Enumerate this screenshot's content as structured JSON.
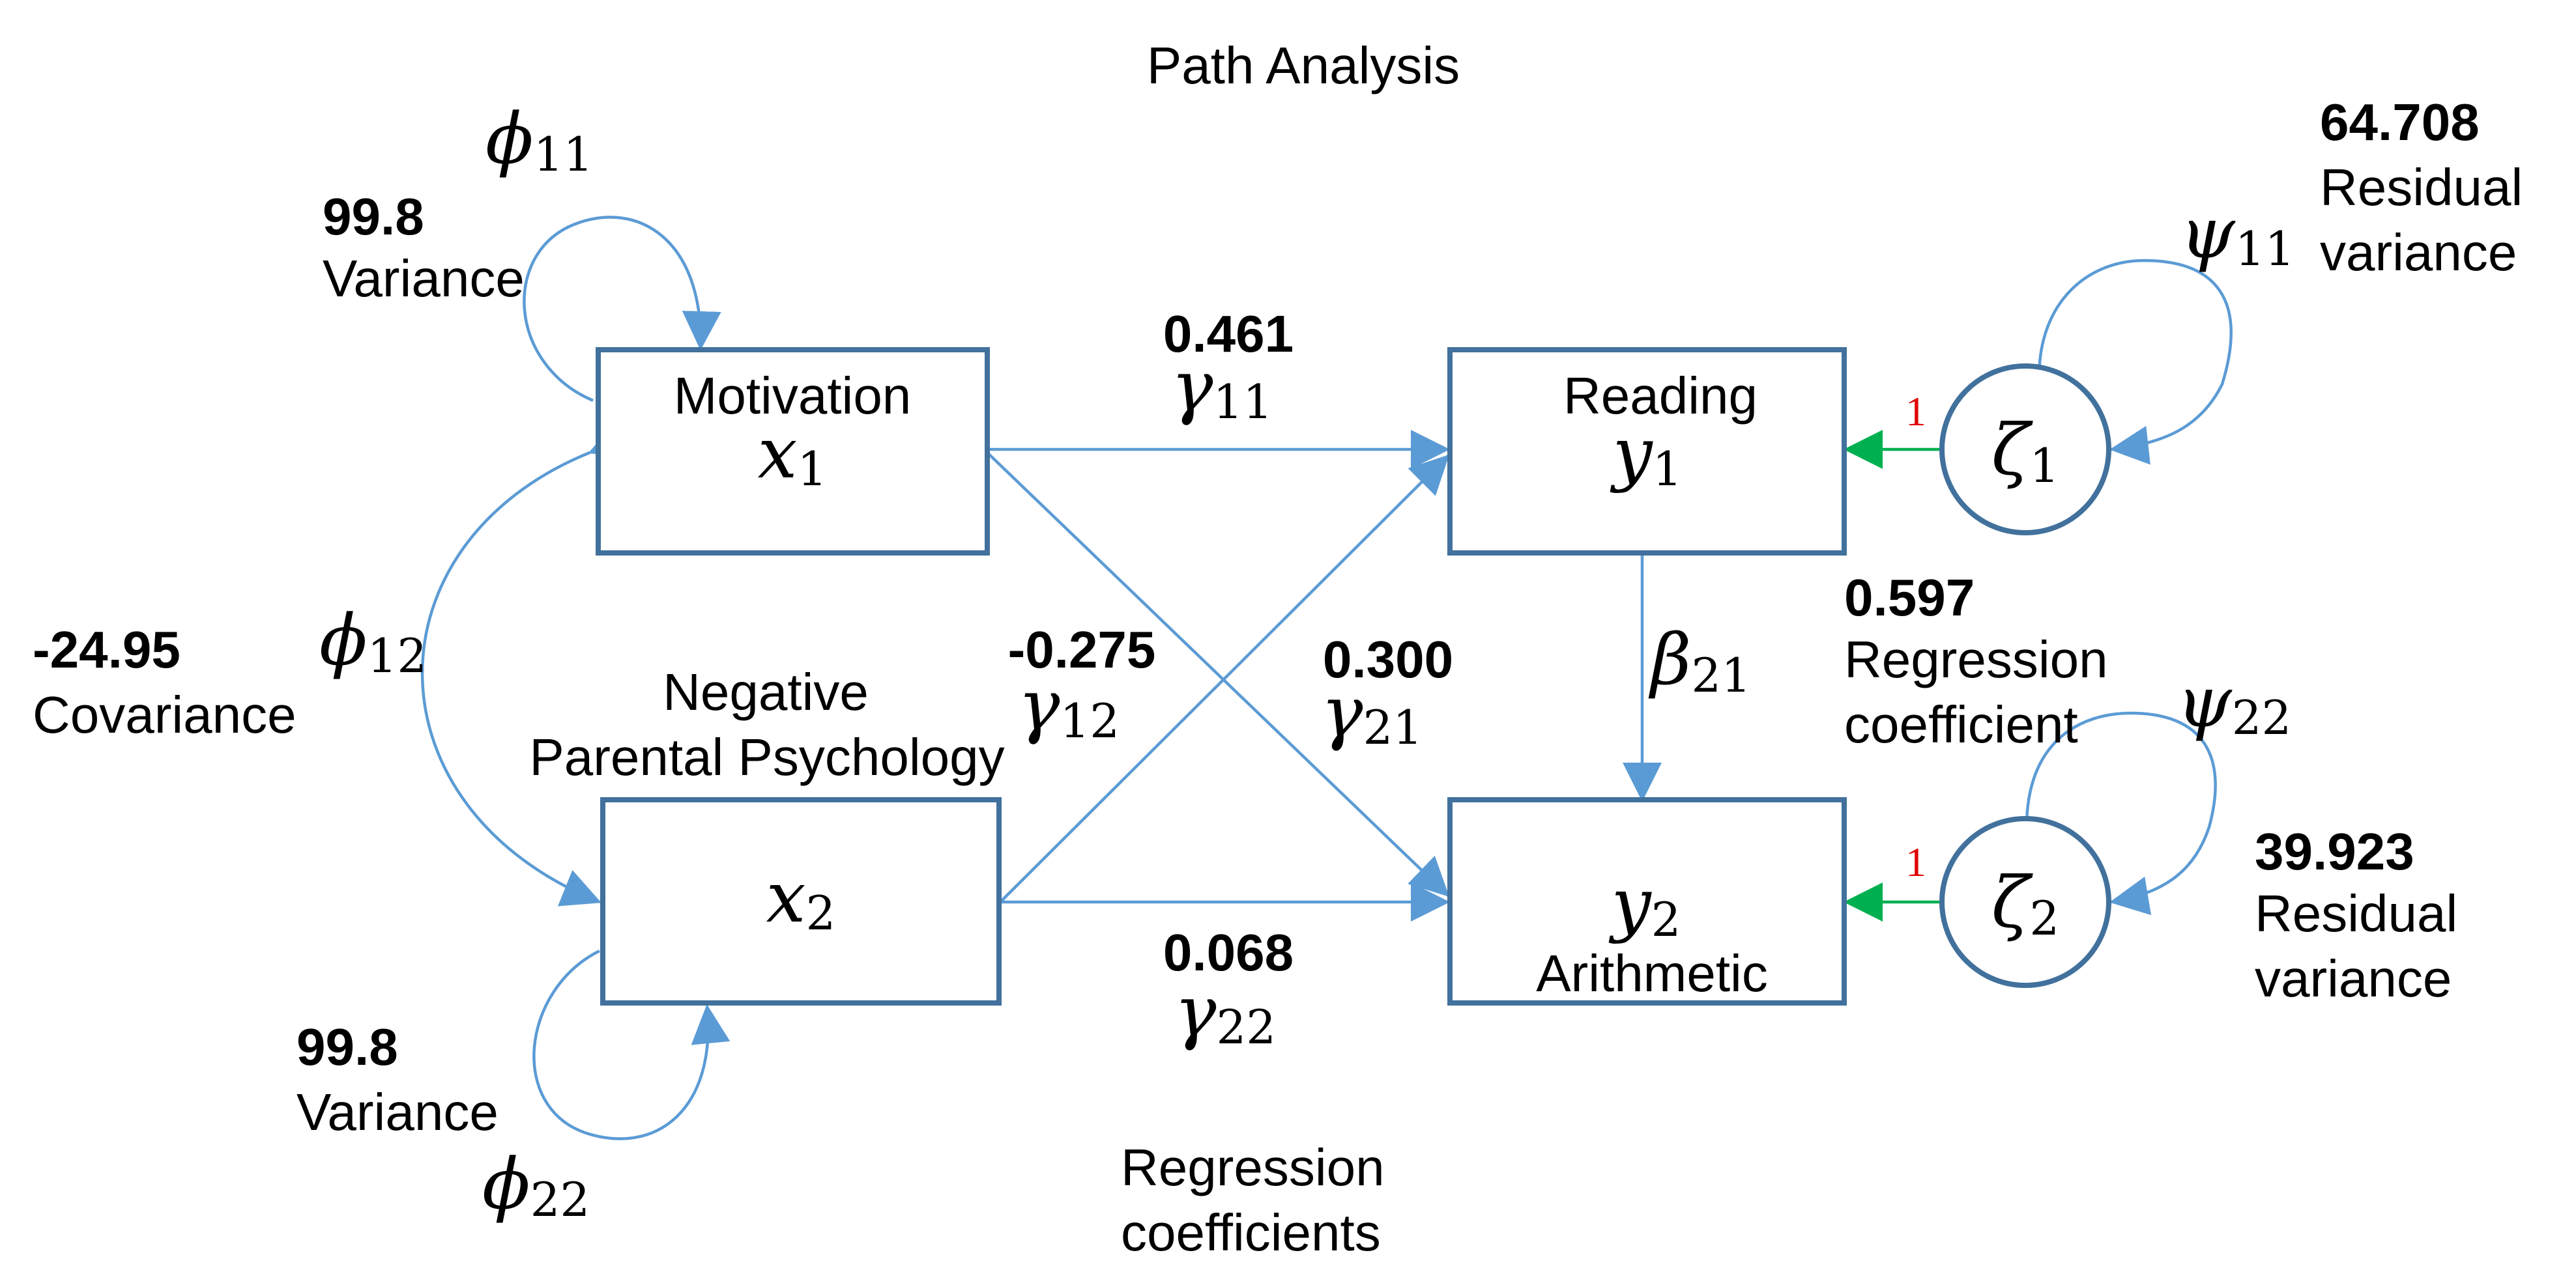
{
  "title": "Path Analysis",
  "nodes": {
    "x1": {
      "label": "Motivation",
      "symbol": "x",
      "subscript": "1"
    },
    "x2": {
      "label_line1": "Negative",
      "label_line2": "Parental Psychology",
      "symbol": "x",
      "subscript": "2"
    },
    "y1": {
      "label": "Reading",
      "symbol": "y",
      "subscript": "1"
    },
    "y2": {
      "label": "Arithmetic",
      "symbol": "y",
      "subscript": "2"
    },
    "zeta1": {
      "symbol": "ζ",
      "subscript": "1"
    },
    "zeta2": {
      "symbol": "ζ",
      "subscript": "2"
    }
  },
  "phi11": {
    "symbol": "ϕ",
    "subscript": "11",
    "value": "99.8",
    "label": "Variance"
  },
  "phi22": {
    "symbol": "ϕ",
    "subscript": "22",
    "value": "99.8",
    "label": "Variance"
  },
  "phi12": {
    "symbol": "ϕ",
    "subscript": "12",
    "value": "-24.95",
    "label": "Covariance"
  },
  "gamma11": {
    "symbol": "γ",
    "subscript": "11",
    "value": "0.461"
  },
  "gamma12": {
    "symbol": "γ",
    "subscript": "12",
    "value": "-0.275"
  },
  "gamma21": {
    "symbol": "γ",
    "subscript": "21",
    "value": "0.300"
  },
  "gamma22": {
    "symbol": "γ",
    "subscript": "22",
    "value": "0.068"
  },
  "beta21": {
    "symbol": "β",
    "subscript": "21",
    "value": "0.597",
    "label_line1": "Regression",
    "label_line2": "coefficient"
  },
  "psi11": {
    "symbol": "ψ",
    "subscript": "11",
    "value": "64.708",
    "label_line1": "Residual",
    "label_line2": "variance"
  },
  "psi22": {
    "symbol": "ψ",
    "subscript": "22",
    "value": "39.923",
    "label_line1": "Residual",
    "label_line2": "variance"
  },
  "zeta_loading": {
    "zeta1": "1",
    "zeta2": "1"
  },
  "footer": {
    "line1": "Regression",
    "line2": "coefficients"
  },
  "colors": {
    "box_stroke": "#41719c",
    "arrow": "#5b9bd5",
    "residual_arrow": "#00b050",
    "loading_text": "#e00000"
  }
}
